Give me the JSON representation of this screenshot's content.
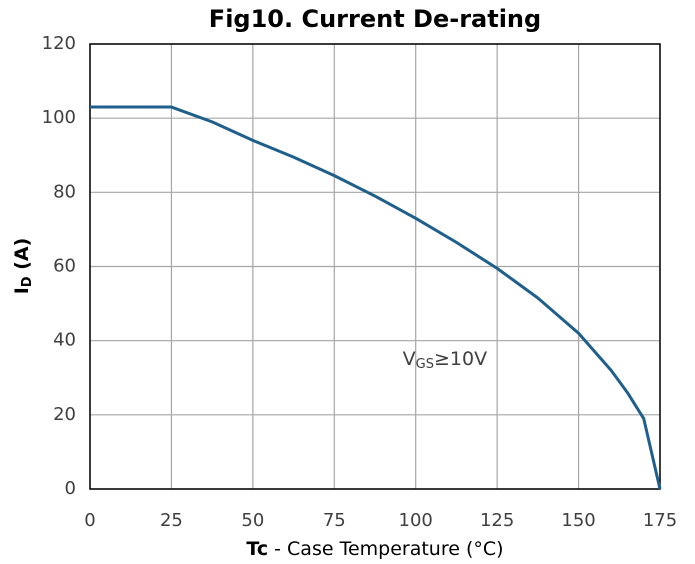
{
  "chart_data": {
    "type": "line",
    "title": "Fig10. Current De-rating",
    "xlabel": [
      "Tc",
      " - Case Temperature (°C)"
    ],
    "ylabel": [
      "I",
      "D",
      " (A)"
    ],
    "annotation": [
      "V",
      "GS",
      "≥10V"
    ],
    "x": [
      0,
      25,
      37.5,
      50,
      62.5,
      75,
      87.5,
      100,
      112.5,
      125,
      137.5,
      150,
      160,
      165,
      170,
      175
    ],
    "series": [
      {
        "color": "#1f5f8b",
        "values": [
          103,
          103,
          99,
          94,
          89.5,
          84.5,
          79,
          73,
          66.5,
          59.5,
          51.5,
          42,
          32,
          26,
          19,
          0
        ]
      }
    ],
    "xlim": [
      0,
      175
    ],
    "xticks": [
      0,
      25,
      50,
      75,
      100,
      125,
      150,
      175
    ],
    "ylim": [
      0,
      120
    ],
    "yticks": [
      0,
      20,
      40,
      60,
      80,
      100,
      120
    ],
    "grid": true
  }
}
